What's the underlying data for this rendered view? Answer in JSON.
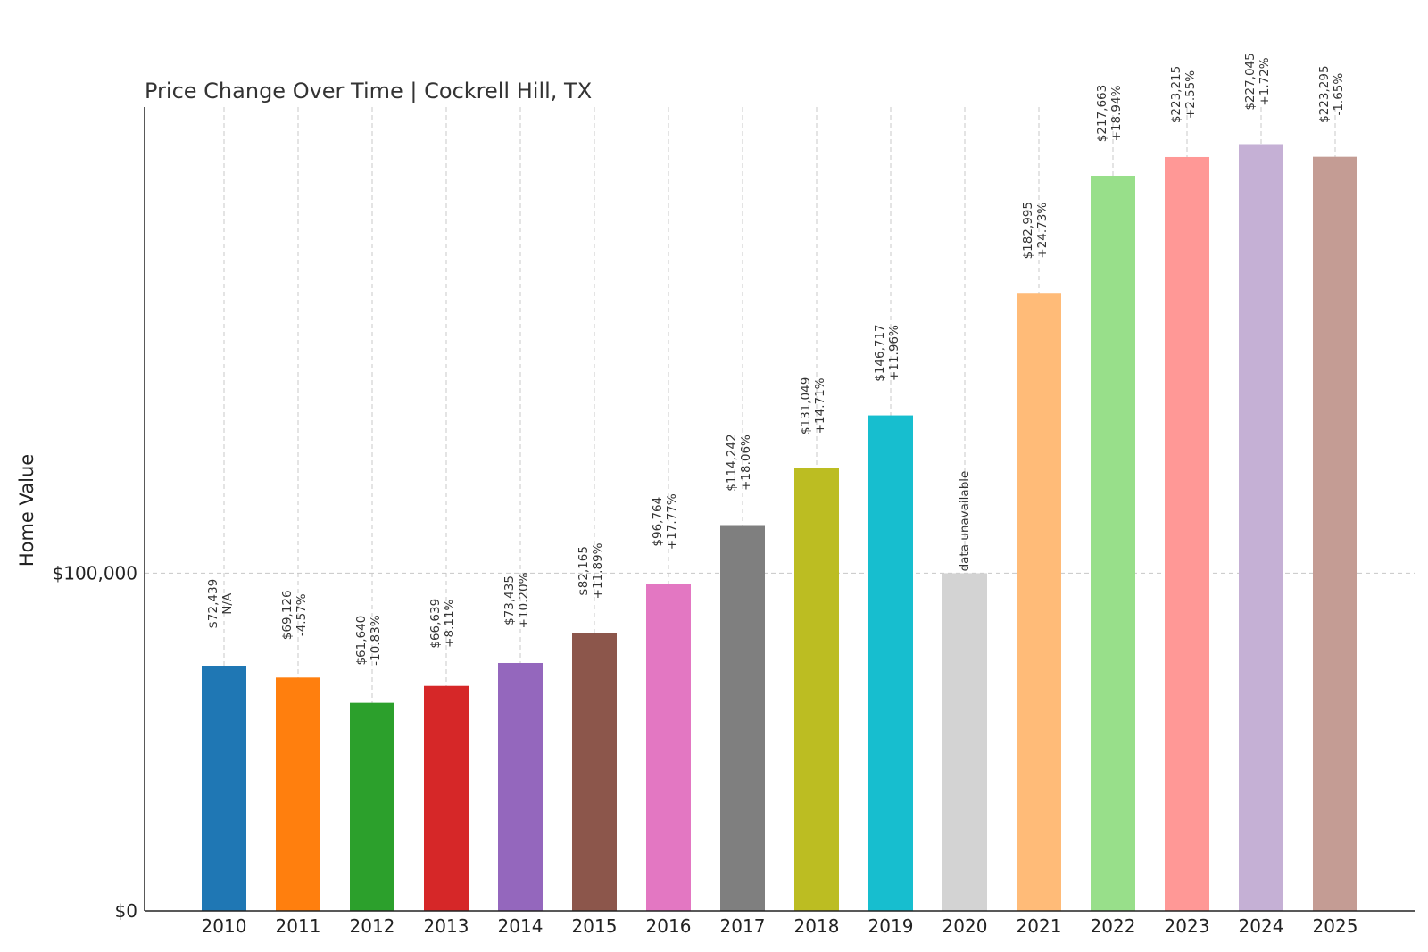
{
  "chart_data": {
    "type": "bar",
    "title": "Price Change Over Time | Cockrell Hill, TX",
    "xlabel": "",
    "ylabel": "Home Value",
    "ylim": [
      0,
      238000
    ],
    "yticks": [
      {
        "value": 0,
        "label": "$0"
      },
      {
        "value": 100000,
        "label": "$100,000"
      }
    ],
    "grid": true,
    "categories": [
      "2010",
      "2011",
      "2012",
      "2013",
      "2014",
      "2015",
      "2016",
      "2017",
      "2018",
      "2019",
      "2020",
      "2021",
      "2022",
      "2023",
      "2024",
      "2025"
    ],
    "values": [
      72439,
      69126,
      61640,
      66639,
      73435,
      82165,
      96764,
      114242,
      131049,
      146717,
      100000,
      182995,
      217663,
      223215,
      227045,
      223295
    ],
    "value_labels": [
      "$72,439",
      "$69,126",
      "$61,640",
      "$66,639",
      "$73,435",
      "$82,165",
      "$96,764",
      "$114,242",
      "$131,049",
      "$146,717",
      "",
      "$182,995",
      "$217,663",
      "$223,215",
      "$227,045",
      "$223,295"
    ],
    "change_labels": [
      "N/A",
      "-4.57%",
      "-10.83%",
      "+8.11%",
      "+10.20%",
      "+11.89%",
      "+17.77%",
      "+18.06%",
      "+14.71%",
      "+11.96%",
      "data unavailable",
      "+24.73%",
      "+18.94%",
      "+2.55%",
      "+1.72%",
      "-1.65%"
    ],
    "colors": [
      "#1f77b4",
      "#ff7f0e",
      "#2ca02c",
      "#d62728",
      "#9467bd",
      "#8c564b",
      "#e377c2",
      "#7f7f7f",
      "#bcbd22",
      "#17becf",
      "#d3d3d3",
      "#ffbb78",
      "#98df8a",
      "#ff9896",
      "#c5b0d5",
      "#c49c94"
    ]
  }
}
